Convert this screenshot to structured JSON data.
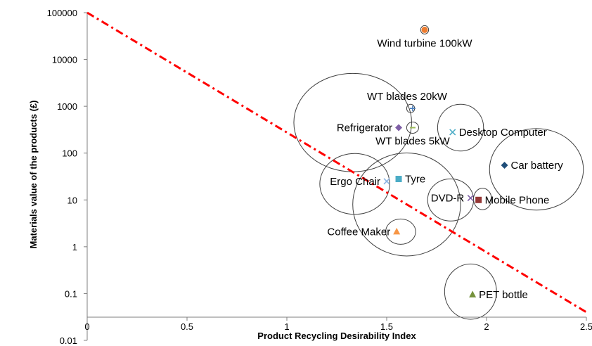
{
  "chart_data": {
    "type": "scatter",
    "xlabel": "Product Recycling Desirability Index",
    "ylabel": "Materials value of the products (£)",
    "xlim": [
      0,
      2.5
    ],
    "ylim": [
      0.01,
      100000
    ],
    "y_scale": "log",
    "x_ticks": [
      "0",
      "0.5",
      "1",
      "1.5",
      "2",
      "2.5"
    ],
    "y_ticks": [
      "0.01",
      "0.1",
      "1",
      "10",
      "100",
      "1000",
      "10000",
      "100000"
    ],
    "grid": false,
    "legend": "none",
    "points": [
      {
        "label": "Wind turbine 100kW",
        "x": 1.69,
        "y": 43000,
        "marker": "circle",
        "color": "#ed7d31",
        "label_pos": "below"
      },
      {
        "label": "WT blades 20kW",
        "x": 1.63,
        "y": 900,
        "marker": "plus",
        "color": "#4a7ebb",
        "label_pos": "above-left"
      },
      {
        "label": "Refrigerator",
        "x": 1.56,
        "y": 350,
        "marker": "diamond",
        "color": "#7f5fa6",
        "label_pos": "left"
      },
      {
        "label": "WT blades 5kW",
        "x": 1.63,
        "y": 350,
        "marker": "minus",
        "color": "#9bbb59",
        "label_pos": "below"
      },
      {
        "label": "Desktop Computer",
        "x": 1.83,
        "y": 280,
        "marker": "x",
        "color": "#4bacc6",
        "label_pos": "right"
      },
      {
        "label": "Car battery",
        "x": 2.09,
        "y": 55,
        "marker": "diamond",
        "color": "#1f4e79",
        "label_pos": "right"
      },
      {
        "label": "Tyre",
        "x": 1.56,
        "y": 28,
        "marker": "square",
        "color": "#4bacc6",
        "label_pos": "right"
      },
      {
        "label": "Ergo Chair",
        "x": 1.5,
        "y": 25,
        "marker": "x",
        "color": "#8db4e2",
        "label_pos": "left"
      },
      {
        "label": "DVD-R",
        "x": 1.92,
        "y": 11,
        "marker": "x",
        "color": "#7f5fa6",
        "label_pos": "left"
      },
      {
        "label": "Mobile Phone",
        "x": 1.96,
        "y": 10,
        "marker": "square",
        "color": "#953735",
        "label_pos": "right"
      },
      {
        "label": "Coffee Maker",
        "x": 1.55,
        "y": 2.1,
        "marker": "triangle",
        "color": "#f79646",
        "label_pos": "left"
      },
      {
        "label": "PET bottle",
        "x": 1.93,
        "y": 0.095,
        "marker": "triangle",
        "color": "#76923c",
        "label_pos": "right"
      }
    ],
    "bubbles": [
      {
        "cx": 1.69,
        "cy": 43000,
        "rx": 0.02,
        "ry_decades": 0.09
      },
      {
        "cx": 1.62,
        "cy": 900,
        "rx": 0.02,
        "ry_decades": 0.09
      },
      {
        "cx": 1.63,
        "cy": 350,
        "rx": 0.03,
        "ry_decades": 0.12
      },
      {
        "cx": 1.33,
        "cy": 450,
        "rx": 0.295,
        "ry_decades": 1.05
      },
      {
        "cx": 1.87,
        "cy": 350,
        "rx": 0.115,
        "ry_decades": 0.5
      },
      {
        "cx": 2.25,
        "cy": 45,
        "rx": 0.235,
        "ry_decades": 0.87
      },
      {
        "cx": 1.34,
        "cy": 22,
        "rx": 0.175,
        "ry_decades": 0.65
      },
      {
        "cx": 1.6,
        "cy": 8,
        "rx": 0.27,
        "ry_decades": 1.1
      },
      {
        "cx": 1.82,
        "cy": 10,
        "rx": 0.115,
        "ry_decades": 0.45
      },
      {
        "cx": 1.98,
        "cy": 10.5,
        "rx": 0.045,
        "ry_decades": 0.23
      },
      {
        "cx": 1.57,
        "cy": 2.1,
        "rx": 0.075,
        "ry_decades": 0.27
      },
      {
        "cx": 1.92,
        "cy": 0.11,
        "rx": 0.13,
        "ry_decades": 0.59
      }
    ],
    "trend_line": {
      "x": [
        0,
        2.5
      ],
      "y": [
        100000,
        0.04
      ],
      "style": "dash-dot",
      "color": "#ff0000"
    }
  }
}
